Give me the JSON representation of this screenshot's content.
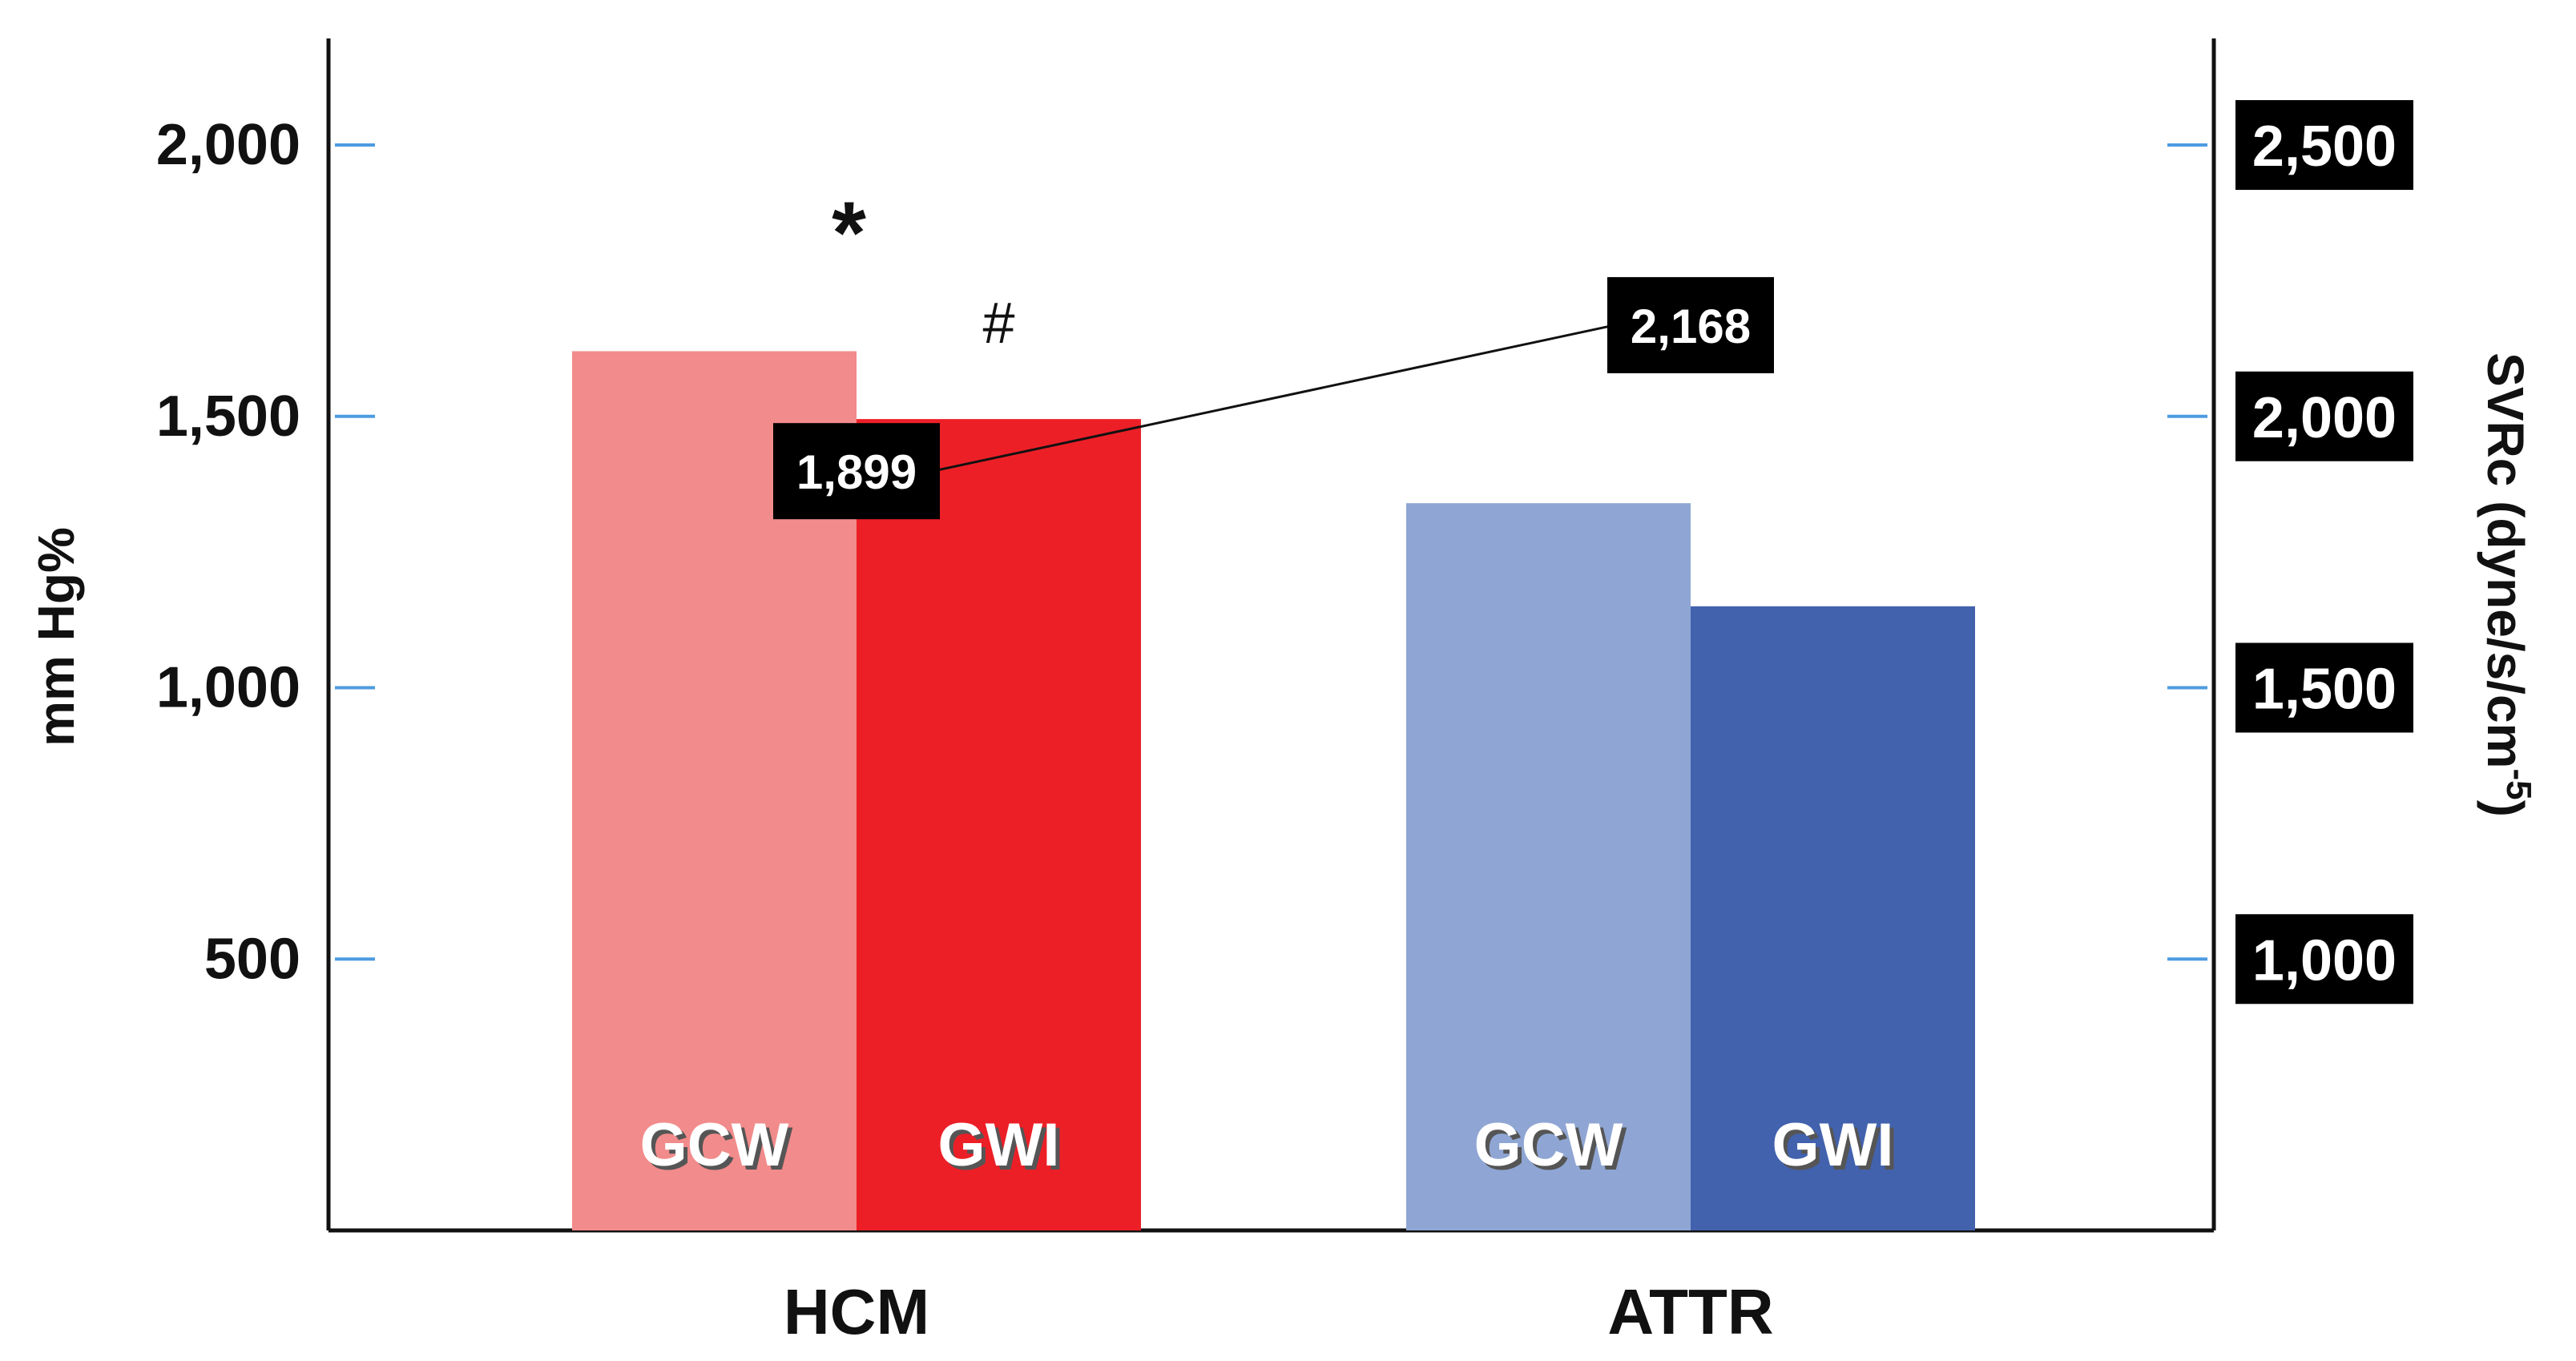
{
  "chart_data": {
    "type": "bar",
    "groups": [
      "HCM",
      "ATTR"
    ],
    "series": [
      {
        "name": "GCW",
        "values": [
          1620,
          1340
        ]
      },
      {
        "name": "GWI",
        "values": [
          1495,
          1150
        ]
      }
    ],
    "bar_labels": [
      [
        "GCW",
        "GWI"
      ],
      [
        "GCW",
        "GWI"
      ]
    ],
    "colors": {
      "HCM": [
        "#f28b8b",
        "#ec1f27"
      ],
      "ATTR": [
        "#8fa6d4",
        "#4262ad"
      ]
    },
    "ylabel": "mm Hg%",
    "ylim": [
      0,
      2200
    ],
    "yticks": [
      {
        "value": 500,
        "label": "500"
      },
      {
        "value": 1000,
        "label": "1,000"
      },
      {
        "value": 1500,
        "label": "1,500"
      },
      {
        "value": 2000,
        "label": "2,000"
      }
    ],
    "y2label": "SVRc (dyne/s/cm-5)",
    "y2label_base": "SVRc (dyne/s/cm",
    "y2label_sup": "-5",
    "y2label_close": ")",
    "y2lim": [
      500,
      2700
    ],
    "y2ticks": [
      {
        "value": 1000,
        "label": "1,000"
      },
      {
        "value": 1500,
        "label": "1,500"
      },
      {
        "value": 2000,
        "label": "2,000"
      },
      {
        "value": 2500,
        "label": "2,500"
      }
    ],
    "svrc_values": [
      {
        "label": "1,899",
        "value": 1899
      },
      {
        "label": "2,168",
        "value": 2168
      }
    ],
    "annotations": [
      {
        "text": "*",
        "group": 0,
        "series": 0
      },
      {
        "text": "#",
        "group": 0,
        "series": 1
      }
    ],
    "grid": false,
    "legend": "none"
  }
}
